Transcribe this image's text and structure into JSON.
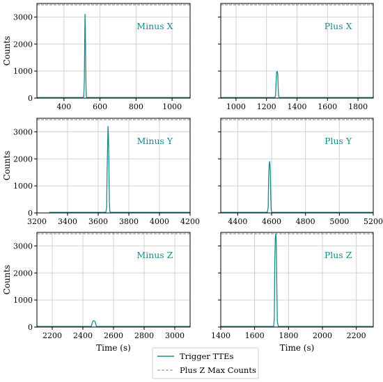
{
  "chart_data": [
    {
      "type": "line",
      "label": "Minus X",
      "xlim": [
        250,
        1100
      ],
      "ylim": [
        0,
        3500
      ],
      "xticks": [
        400,
        600,
        800,
        1000
      ],
      "yticks": [
        0,
        1000,
        2000,
        3000
      ],
      "ylabel": "Counts",
      "xlabel": "",
      "max_counts": 3450,
      "series_x": [
        250,
        505,
        510,
        513,
        515,
        517,
        519,
        521,
        523,
        525,
        527,
        530,
        1100
      ],
      "series_y": [
        20,
        20,
        60,
        600,
        2000,
        3100,
        2600,
        1200,
        200,
        40,
        20,
        20,
        20
      ]
    },
    {
      "type": "line",
      "label": "Plus X",
      "xlim": [
        900,
        1900
      ],
      "ylim": [
        0,
        3500
      ],
      "xticks": [
        1000,
        1200,
        1400,
        1600,
        1800
      ],
      "yticks": [
        0,
        1000,
        2000,
        3000
      ],
      "ylabel": "",
      "xlabel": "",
      "max_counts": 3450,
      "series_x": [
        900,
        1255,
        1260,
        1263,
        1266,
        1270,
        1274,
        1277,
        1280,
        1285,
        1900
      ],
      "series_y": [
        20,
        20,
        100,
        600,
        950,
        990,
        900,
        300,
        60,
        20,
        20
      ]
    },
    {
      "type": "line",
      "label": "Minus Y",
      "xlim": [
        3200,
        4200
      ],
      "ylim": [
        0,
        3500
      ],
      "xticks": [
        3200,
        3400,
        3600,
        3800,
        4000,
        4200
      ],
      "yticks": [
        0,
        1000,
        2000,
        3000
      ],
      "ylabel": "Counts",
      "xlabel": "",
      "max_counts": 3450,
      "series_x": [
        3280,
        3650,
        3655,
        3658,
        3661,
        3664,
        3667,
        3670,
        3673,
        3676,
        3680,
        4200
      ],
      "series_y": [
        20,
        20,
        200,
        1500,
        2300,
        3200,
        2900,
        1800,
        400,
        60,
        20,
        20
      ]
    },
    {
      "type": "line",
      "label": "Plus Y",
      "xlim": [
        4300,
        5200
      ],
      "ylim": [
        0,
        3500
      ],
      "xticks": [
        4400,
        4600,
        4800,
        5000,
        5200
      ],
      "yticks": [
        0,
        1000,
        2000,
        3000
      ],
      "ylabel": "",
      "xlabel": "",
      "max_counts": 3450,
      "series_x": [
        4300,
        4575,
        4580,
        4583,
        4586,
        4589,
        4592,
        4595,
        4598,
        4602,
        5200
      ],
      "series_y": [
        20,
        20,
        200,
        1400,
        1800,
        1900,
        1600,
        600,
        80,
        20,
        20
      ]
    },
    {
      "type": "line",
      "label": "Minus Z",
      "xlim": [
        2100,
        3100
      ],
      "ylim": [
        0,
        3500
      ],
      "xticks": [
        2200,
        2400,
        2600,
        2800,
        3000
      ],
      "yticks": [
        0,
        1000,
        2000,
        3000
      ],
      "ylabel": "Counts",
      "xlabel": "Time (s)",
      "max_counts": 3450,
      "series_x": [
        2100,
        2455,
        2460,
        2465,
        2470,
        2475,
        2480,
        2485,
        2490,
        3100
      ],
      "series_y": [
        20,
        20,
        120,
        220,
        230,
        220,
        200,
        80,
        20,
        20
      ]
    },
    {
      "type": "line",
      "label": "Plus Z",
      "xlim": [
        1400,
        2300
      ],
      "ylim": [
        0,
        3500
      ],
      "xticks": [
        1400,
        1600,
        1800,
        2000,
        2200
      ],
      "yticks": [
        0,
        1000,
        2000,
        3000
      ],
      "ylabel": "",
      "xlabel": "Time (s)",
      "max_counts": 3450,
      "series_x": [
        1400,
        1712,
        1716,
        1719,
        1722,
        1725,
        1728,
        1731,
        1734,
        1740,
        2300
      ],
      "series_y": [
        20,
        20,
        300,
        2400,
        3300,
        3450,
        3200,
        1500,
        200,
        20,
        20
      ]
    }
  ],
  "legend": {
    "items": [
      "Trigger TTEs",
      "Plus Z Max Counts"
    ],
    "position": "bottom-center"
  },
  "colors": {
    "line": "#1a8a8a",
    "max_line": "#808080",
    "grid": "#d0d0d0"
  }
}
